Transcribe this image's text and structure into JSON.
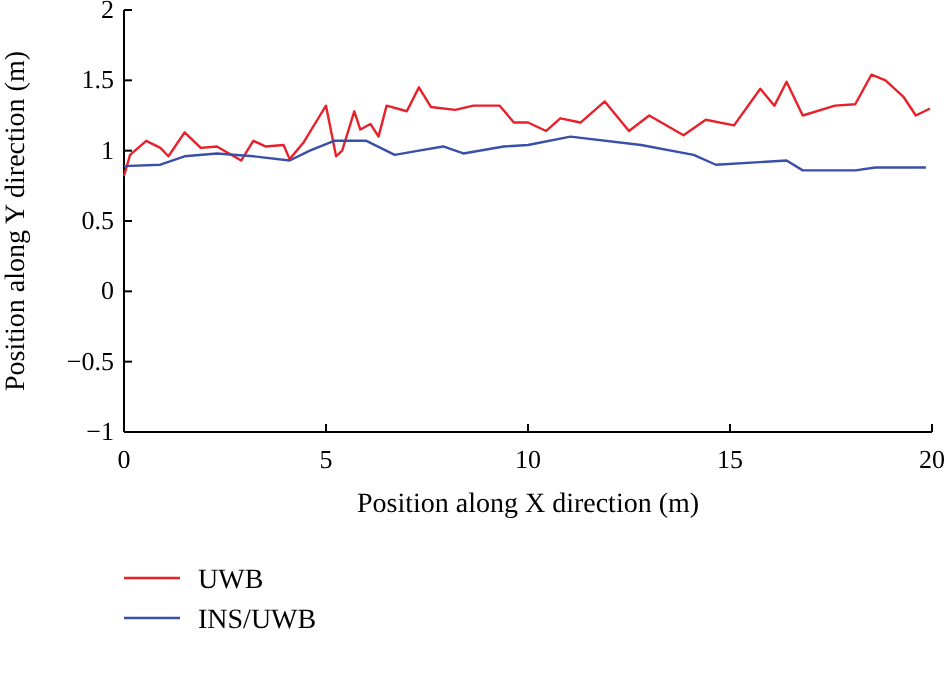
{
  "chart_data": {
    "type": "line",
    "xlabel": "Position along X direction (m)",
    "ylabel": "Position along Y direction (m)",
    "xlim": [
      0,
      20
    ],
    "xticks": [
      0,
      5,
      10,
      15,
      20
    ],
    "ylim": [
      -1,
      2
    ],
    "yticks": [
      -1,
      -0.5,
      0,
      0.5,
      1,
      1.5,
      2
    ],
    "grid": false,
    "legend": "bottom left",
    "line_style": "solid",
    "series": [
      {
        "name": "UWB",
        "color": "#e8202a",
        "x": [
          0,
          0.15,
          0.55,
          0.9,
          1.1,
          1.5,
          1.9,
          2.3,
          2.9,
          3.2,
          3.5,
          3.95,
          4.1,
          4.45,
          4.85,
          5.0,
          5.25,
          5.4,
          5.7,
          5.85,
          6.1,
          6.3,
          6.5,
          7.0,
          7.3,
          7.6,
          8.2,
          8.65,
          9.3,
          9.65,
          10.0,
          10.45,
          10.8,
          11.3,
          11.9,
          12.5,
          13.0,
          13.85,
          14.4,
          15.1,
          15.75,
          16.1,
          16.4,
          16.8,
          17.6,
          18.1,
          18.5,
          18.85,
          19.3,
          19.6,
          19.95
        ],
        "values": [
          0.82,
          0.97,
          1.07,
          1.02,
          0.96,
          1.13,
          1.02,
          1.03,
          0.93,
          1.07,
          1.03,
          1.04,
          0.94,
          1.06,
          1.25,
          1.32,
          0.96,
          1.0,
          1.28,
          1.15,
          1.19,
          1.1,
          1.32,
          1.28,
          1.45,
          1.31,
          1.29,
          1.32,
          1.32,
          1.2,
          1.2,
          1.14,
          1.23,
          1.2,
          1.35,
          1.14,
          1.25,
          1.11,
          1.22,
          1.18,
          1.44,
          1.32,
          1.49,
          1.25,
          1.32,
          1.33,
          1.54,
          1.5,
          1.38,
          1.25,
          1.3
        ]
      },
      {
        "name": "INS/UWB",
        "color": "#3a4fa8",
        "x": [
          0,
          0.9,
          1.5,
          2.3,
          3.2,
          4.1,
          4.6,
          5.2,
          6.0,
          6.7,
          7.3,
          7.9,
          8.4,
          9.4,
          10.0,
          11.05,
          12.8,
          14.1,
          14.65,
          16.4,
          16.8,
          18.1,
          18.6,
          19.85
        ],
        "values": [
          0.89,
          0.9,
          0.96,
          0.98,
          0.96,
          0.93,
          1.0,
          1.07,
          1.07,
          0.97,
          1.0,
          1.03,
          0.98,
          1.03,
          1.04,
          1.1,
          1.04,
          0.97,
          0.9,
          0.93,
          0.86,
          0.86,
          0.88,
          0.88
        ]
      }
    ]
  }
}
